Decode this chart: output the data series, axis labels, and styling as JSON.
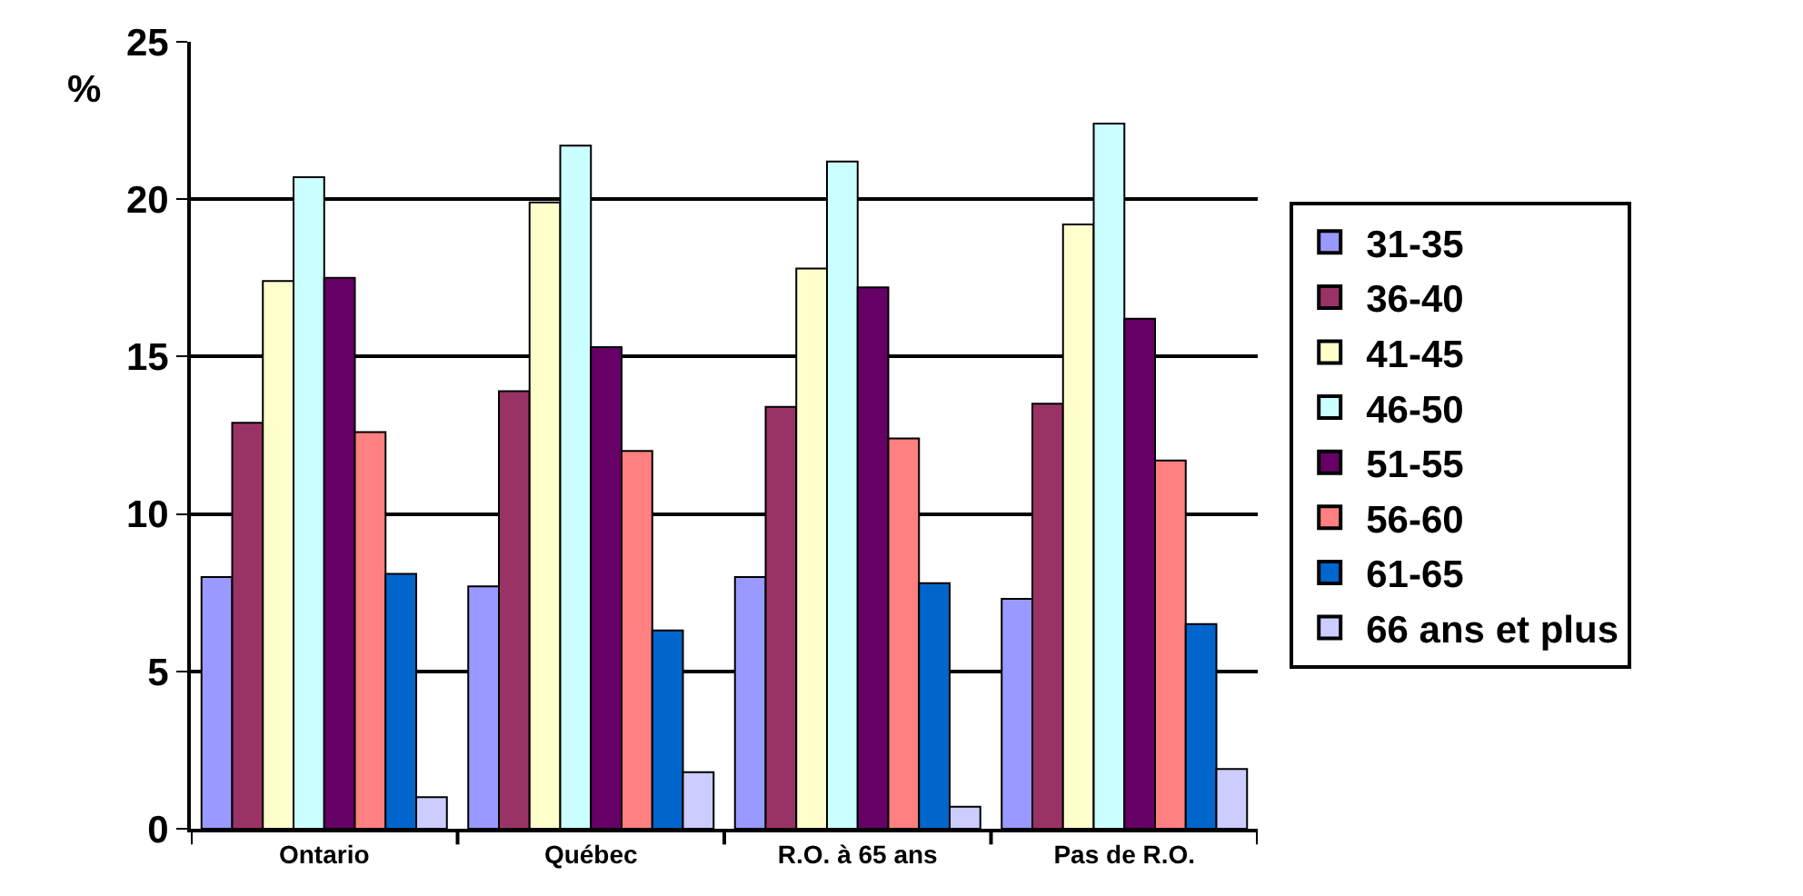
{
  "chart_data": {
    "type": "bar",
    "ylabel": "%",
    "categories": [
      "Ontario",
      "Québec",
      "R.O. à 65 ans",
      "Pas de R.O."
    ],
    "series": [
      {
        "name": "31-35",
        "color": "#9999ff",
        "values": [
          8.0,
          7.7,
          8.0,
          7.3
        ]
      },
      {
        "name": "36-40",
        "color": "#993366",
        "values": [
          12.9,
          13.9,
          13.4,
          13.5
        ]
      },
      {
        "name": "41-45",
        "color": "#ffffcc",
        "values": [
          17.4,
          19.9,
          17.8,
          19.2
        ]
      },
      {
        "name": "46-50",
        "color": "#ccffff",
        "values": [
          20.7,
          21.7,
          21.2,
          22.4
        ]
      },
      {
        "name": "51-55",
        "color": "#660066",
        "values": [
          17.5,
          15.3,
          17.2,
          16.2
        ]
      },
      {
        "name": "56-60",
        "color": "#ff8080",
        "values": [
          12.6,
          12.0,
          12.4,
          11.7
        ]
      },
      {
        "name": "61-65",
        "color": "#0066cc",
        "values": [
          8.1,
          6.3,
          7.8,
          6.5
        ]
      },
      {
        "name": "66 ans et plus",
        "color": "#ccccff",
        "values": [
          1.0,
          1.8,
          0.7,
          1.9
        ]
      }
    ],
    "ylim": [
      0,
      25
    ],
    "yticks": [
      0,
      5,
      10,
      15,
      20,
      25
    ],
    "grid": "y",
    "legend": "right"
  }
}
